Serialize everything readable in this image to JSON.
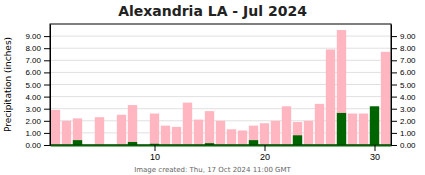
{
  "chart_data": {
    "type": "bar",
    "title": "Alexandria LA - Jul 2024",
    "ylabel": "Precipitation (inches)",
    "annotations": [
      "Image created: Thu, 17 Oct 2024 11:00 GMT"
    ],
    "x": [
      1,
      2,
      3,
      4,
      5,
      6,
      7,
      8,
      9,
      10,
      11,
      12,
      13,
      14,
      15,
      16,
      17,
      18,
      19,
      20,
      21,
      22,
      23,
      24,
      25,
      26,
      27,
      28,
      29,
      30,
      31
    ],
    "series": [
      {
        "color": "#FFB6C1",
        "values": [
          2.9,
          2.0,
          2.2,
          0.0,
          2.3,
          0.0,
          2.5,
          3.3,
          0.0,
          2.6,
          1.6,
          1.5,
          3.5,
          2.1,
          2.8,
          2.0,
          1.3,
          1.2,
          1.6,
          1.8,
          2.0,
          3.2,
          1.9,
          2.0,
          3.4,
          7.9,
          9.5,
          2.6,
          2.6,
          2.1,
          7.7
        ]
      },
      {
        "color": "#006400",
        "values": [
          0.0,
          0.0,
          0.4,
          0.0,
          0.0,
          0.0,
          0.0,
          0.25,
          0.0,
          0.1,
          0.0,
          0.0,
          0.0,
          0.0,
          0.15,
          0.0,
          0.0,
          0.0,
          0.4,
          0.0,
          0.0,
          0.0,
          0.8,
          0.0,
          0.0,
          0.0,
          2.65,
          0.0,
          0.0,
          3.2,
          0.0
        ]
      }
    ],
    "xlim": [
      0.5,
      31.5
    ],
    "xticks": [
      10,
      20,
      30
    ],
    "ylim": [
      0.0,
      10.0
    ],
    "yticks": [
      {
        "value": 0.0,
        "label": "0.00"
      },
      {
        "value": 1.0,
        "label": "1.00"
      },
      {
        "value": 2.0,
        "label": "2.00"
      },
      {
        "value": 3.0,
        "label": "3.00"
      },
      {
        "value": 4.0,
        "label": "4.00"
      },
      {
        "value": 5.0,
        "label": "5.00"
      },
      {
        "value": 6.0,
        "label": "6.00"
      },
      {
        "value": 7.0,
        "label": "7.00"
      },
      {
        "value": 8.0,
        "label": "8.00"
      },
      {
        "value": 9.0,
        "label": "9.00"
      }
    ],
    "y2lim": [
      0.0,
      10.0
    ],
    "y2ticks": [
      {
        "value": 0.0,
        "label": "0.00"
      },
      {
        "value": 1.0,
        "label": "1.00"
      },
      {
        "value": 2.0,
        "label": "2.00"
      },
      {
        "value": 3.0,
        "label": "3.00"
      },
      {
        "value": 4.0,
        "label": "4.00"
      },
      {
        "value": 5.0,
        "label": "5.00"
      },
      {
        "value": 6.0,
        "label": "6.00"
      },
      {
        "value": 7.0,
        "label": "7.00"
      },
      {
        "value": 8.0,
        "label": "8.00"
      },
      {
        "value": 9.0,
        "label": "9.00"
      }
    ],
    "grid": true
  }
}
